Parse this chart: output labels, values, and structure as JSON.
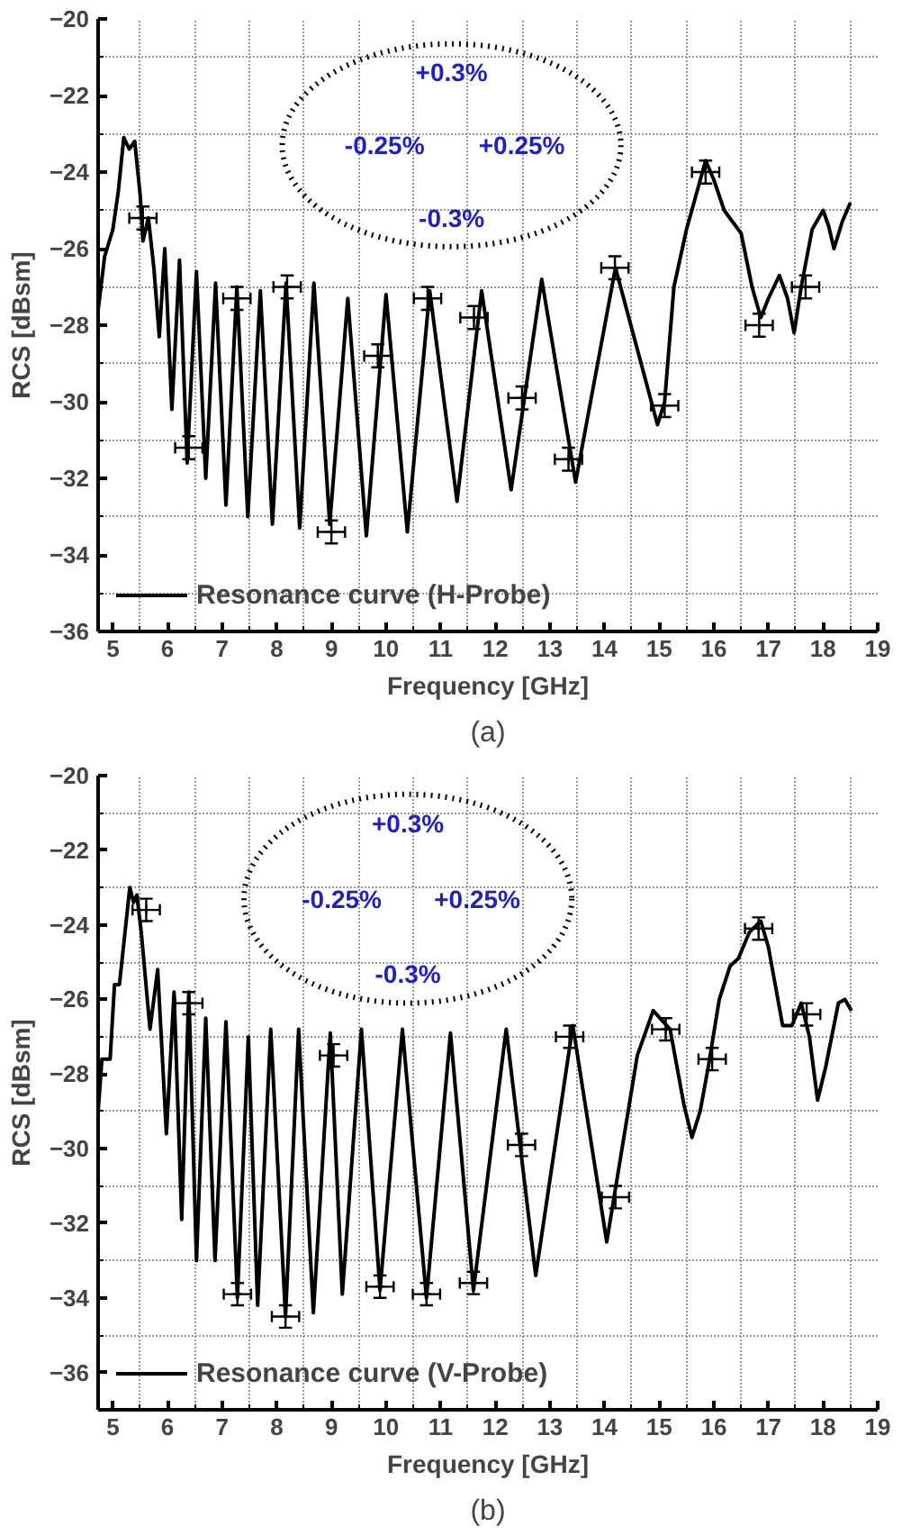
{
  "chart_data": [
    {
      "type": "line",
      "title": "(a)",
      "xlabel": "Frequency [GHz]",
      "ylabel": "RCS [dBsm]",
      "xlim": [
        4.73,
        19
      ],
      "xticks": [
        5,
        6,
        7,
        8,
        9,
        10,
        11,
        12,
        13,
        14,
        15,
        16,
        17,
        18,
        19
      ],
      "ylim": [
        -36,
        -20
      ],
      "yticks": [
        -36,
        -34,
        -32,
        -30,
        -28,
        -26,
        -24,
        -22,
        -20
      ],
      "grid": true,
      "legend": "bottom left",
      "annotations": [
        "+0.3%",
        "-0.25%",
        "+0.25%",
        "-0.3%"
      ],
      "series": [
        {
          "name": "Resonance curve (H-Probe)",
          "color": "#000000",
          "line_style": "solid",
          "x": [
            4.73,
            4.85,
            5.0,
            5.1,
            5.2,
            5.3,
            5.4,
            5.5,
            5.55,
            5.65,
            5.75,
            5.85,
            5.95,
            6.08,
            6.22,
            6.36,
            6.53,
            6.7,
            6.88,
            7.07,
            7.27,
            7.47,
            7.7,
            7.92,
            8.17,
            8.42,
            8.68,
            8.97,
            9.3,
            9.64,
            10.0,
            10.39,
            10.8,
            11.3,
            11.75,
            12.29,
            12.85,
            13.47,
            14.2,
            14.97,
            15.1,
            15.27,
            15.5,
            15.85,
            16.0,
            16.19,
            16.5,
            16.7,
            16.86,
            17.0,
            17.2,
            17.35,
            17.47,
            17.6,
            17.8,
            18.0,
            18.1,
            18.2,
            18.35,
            18.5
          ],
          "values": [
            -27.6,
            -26.2,
            -25.5,
            -24.5,
            -23.1,
            -23.4,
            -23.2,
            -24.6,
            -25.8,
            -25.2,
            -26.5,
            -28.3,
            -26.0,
            -30.2,
            -26.3,
            -31.6,
            -26.6,
            -32.0,
            -26.9,
            -32.7,
            -27.0,
            -33.0,
            -27.1,
            -33.2,
            -26.9,
            -33.3,
            -26.9,
            -33.2,
            -27.3,
            -33.5,
            -27.2,
            -33.4,
            -27.1,
            -32.6,
            -27.1,
            -32.3,
            -26.8,
            -32.1,
            -26.5,
            -30.6,
            -30.0,
            -27.0,
            -25.5,
            -23.7,
            -24.2,
            -25.0,
            -25.6,
            -27.0,
            -27.8,
            -27.3,
            -26.7,
            -27.3,
            -28.2,
            -27.0,
            -25.5,
            -25.0,
            -25.4,
            -26.0,
            -25.3,
            -24.8
          ]
        },
        {
          "type": "scatter",
          "color": "#000000",
          "marker": "cross",
          "x": [
            5.55,
            6.39,
            7.27,
            8.19,
            9.0,
            9.85,
            10.76,
            11.61,
            12.49,
            13.34,
            14.19,
            15.1,
            15.85,
            16.83,
            17.68
          ],
          "values": [
            -25.2,
            -31.2,
            -27.3,
            -27.0,
            -33.4,
            -28.8,
            -27.3,
            -27.8,
            -29.9,
            -31.5,
            -26.5,
            -30.1,
            -24.0,
            -28.0,
            -27.0
          ],
          "errors": [
            0.3,
            0.3,
            0.3,
            0.3,
            0.3,
            0.3,
            0.3,
            0.3,
            0.3,
            0.3,
            0.3,
            0.3,
            0.3,
            0.3,
            0.3
          ],
          "xerrors": [
            0.25,
            0.25,
            0.25,
            0.25,
            0.25,
            0.25,
            0.25,
            0.25,
            0.25,
            0.25,
            0.25,
            0.25,
            0.25,
            0.25,
            0.25
          ]
        }
      ]
    },
    {
      "type": "line",
      "title": "(b)",
      "xlabel": "Frequency [GHz]",
      "ylabel": "RCS [dBsm]",
      "xlim": [
        4.73,
        19
      ],
      "xticks": [
        5,
        6,
        7,
        8,
        9,
        10,
        11,
        12,
        13,
        14,
        15,
        16,
        17,
        18,
        19
      ],
      "ylim": [
        -37,
        -20
      ],
      "yticks": [
        -36,
        -34,
        -32,
        -30,
        -28,
        -26,
        -24,
        -22,
        -20
      ],
      "grid": true,
      "legend": "bottom left",
      "annotations": [
        "+0.3%",
        "-0.25%",
        "+0.25%",
        "-0.3%"
      ],
      "series": [
        {
          "name": "Resonance curve (V-Probe)",
          "color": "#000000",
          "line_style": "solid",
          "x": [
            4.73,
            4.8,
            4.95,
            5.03,
            5.12,
            5.31,
            5.38,
            5.44,
            5.52,
            5.68,
            5.82,
            5.98,
            6.12,
            6.26,
            6.39,
            6.53,
            6.7,
            6.87,
            7.07,
            7.28,
            7.48,
            7.65,
            7.89,
            8.16,
            8.4,
            8.67,
            8.98,
            9.2,
            9.55,
            9.89,
            10.3,
            10.74,
            11.18,
            11.6,
            12.2,
            12.74,
            13.42,
            14.04,
            14.6,
            14.89,
            15.2,
            15.45,
            15.6,
            15.75,
            15.9,
            16.1,
            16.3,
            16.45,
            16.65,
            16.86,
            17.0,
            17.26,
            17.43,
            17.6,
            17.75,
            17.9,
            18.05,
            18.28,
            18.4,
            18.52
          ],
          "values": [
            -29.0,
            -27.6,
            -27.6,
            -25.6,
            -25.6,
            -23.0,
            -23.4,
            -23.2,
            -24.2,
            -26.8,
            -25.2,
            -29.6,
            -25.8,
            -31.9,
            -25.8,
            -33.0,
            -26.5,
            -33.0,
            -26.6,
            -34.0,
            -27.0,
            -34.2,
            -26.8,
            -34.5,
            -26.8,
            -34.4,
            -26.9,
            -33.9,
            -26.8,
            -33.8,
            -26.8,
            -34.0,
            -26.9,
            -33.8,
            -26.8,
            -33.4,
            -26.7,
            -32.5,
            -27.5,
            -26.3,
            -26.8,
            -28.8,
            -29.7,
            -29.0,
            -27.8,
            -26.0,
            -25.1,
            -24.9,
            -24.2,
            -23.9,
            -24.6,
            -26.7,
            -26.7,
            -26.1,
            -27.0,
            -28.7,
            -27.8,
            -26.1,
            -26.0,
            -26.3
          ]
        },
        {
          "type": "scatter",
          "color": "#000000",
          "marker": "cross",
          "x": [
            5.61,
            6.39,
            7.28,
            8.16,
            9.04,
            9.89,
            10.74,
            11.6,
            12.48,
            13.36,
            14.2,
            15.12,
            15.97,
            16.82,
            17.7
          ],
          "values": [
            -23.6,
            -26.1,
            -33.9,
            -34.5,
            -27.5,
            -33.7,
            -33.9,
            -33.6,
            -29.9,
            -27.0,
            -31.3,
            -26.8,
            -27.6,
            -24.1,
            -26.4
          ],
          "errors": [
            0.3,
            0.3,
            0.3,
            0.3,
            0.3,
            0.3,
            0.3,
            0.3,
            0.3,
            0.3,
            0.3,
            0.3,
            0.3,
            0.3,
            0.3
          ],
          "xerrors": [
            0.25,
            0.25,
            0.25,
            0.25,
            0.25,
            0.25,
            0.25,
            0.25,
            0.25,
            0.25,
            0.25,
            0.25,
            0.25,
            0.25,
            0.25
          ]
        }
      ]
    }
  ]
}
